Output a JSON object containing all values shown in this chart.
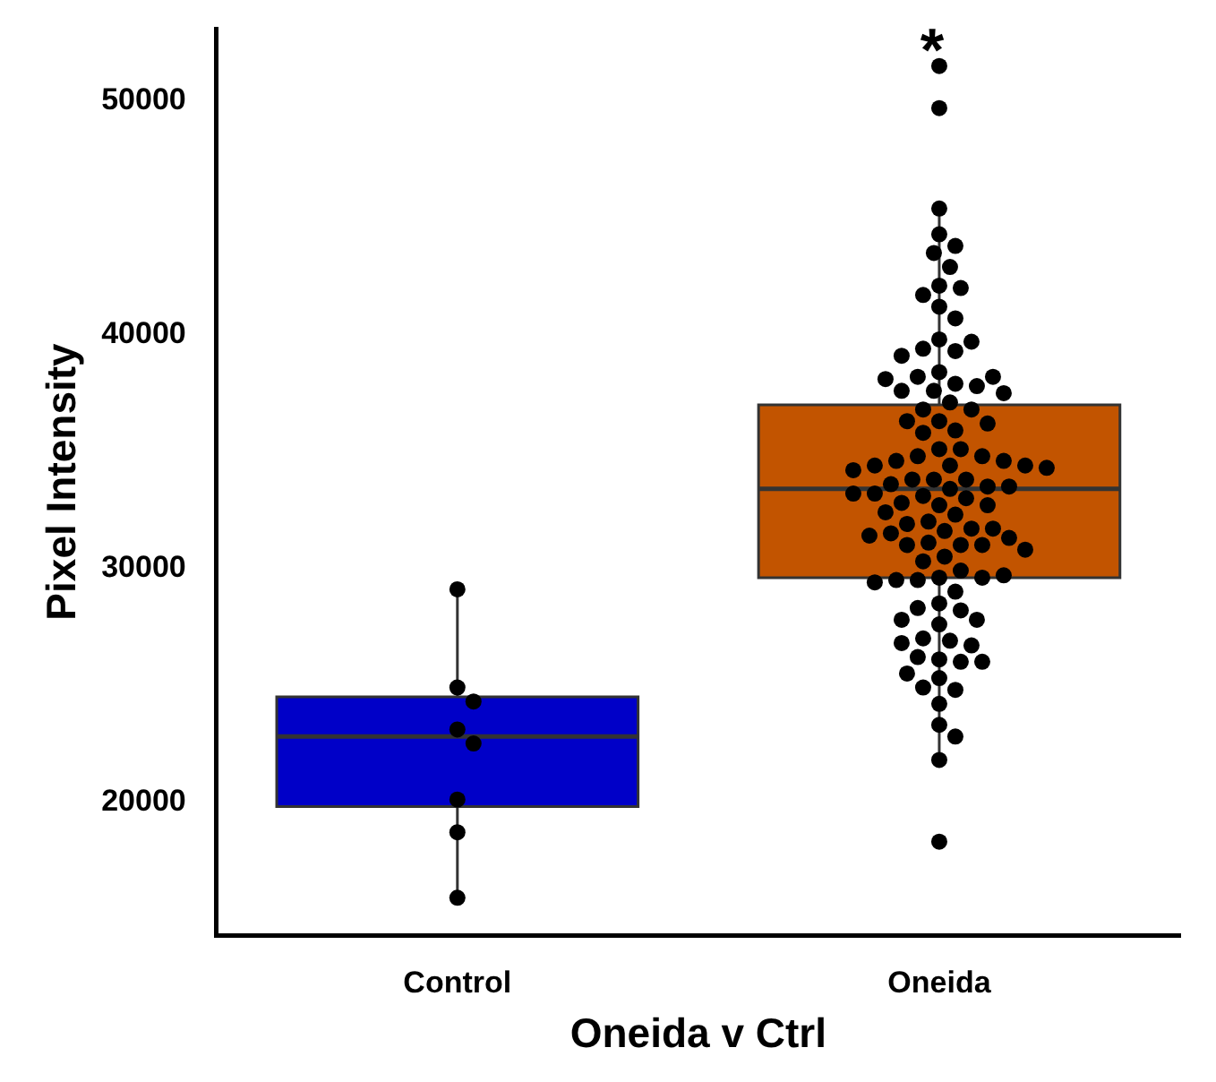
{
  "chart_data": {
    "type": "box",
    "xlabel": "Oneida v Ctrl",
    "ylabel": "Pixel Intensity",
    "categories": [
      "Control",
      "Oneida"
    ],
    "ylim": [
      14300,
      53100
    ],
    "yticks": [
      20000,
      30000,
      40000,
      50000
    ],
    "annotations": [
      "*"
    ],
    "series": [
      {
        "type": "box",
        "colors": [
          "#0000c8",
          "#c25400"
        ],
        "boxes": [
          {
            "low": 15900,
            "q1": 19800,
            "median": 22800,
            "q3": 24500,
            "high": 29100
          },
          {
            "low": 21800,
            "q1": 29600,
            "median": 33400,
            "q3": 37000,
            "high": 45400,
            "outliers": [
              51500,
              49700,
              18300
            ]
          }
        ]
      },
      {
        "type": "scatter",
        "color": "#000000",
        "marker": "circle",
        "x": [
          "Control",
          "Control",
          "Control",
          "Control",
          "Control",
          "Control",
          "Control",
          "Control",
          "Oneida",
          "Oneida",
          "Oneida",
          "Oneida",
          "Oneida",
          "Oneida",
          "Oneida",
          "Oneida",
          "Oneida",
          "Oneida",
          "Oneida",
          "Oneida",
          "Oneida",
          "Oneida",
          "Oneida",
          "Oneida",
          "Oneida",
          "Oneida",
          "Oneida",
          "Oneida",
          "Oneida",
          "Oneida",
          "Oneida",
          "Oneida",
          "Oneida",
          "Oneida",
          "Oneida",
          "Oneida",
          "Oneida",
          "Oneida",
          "Oneida",
          "Oneida",
          "Oneida",
          "Oneida",
          "Oneida",
          "Oneida",
          "Oneida",
          "Oneida",
          "Oneida",
          "Oneida",
          "Oneida",
          "Oneida",
          "Oneida",
          "Oneida",
          "Oneida",
          "Oneida",
          "Oneida",
          "Oneida",
          "Oneida",
          "Oneida",
          "Oneida",
          "Oneida",
          "Oneida",
          "Oneida",
          "Oneida",
          "Oneida",
          "Oneida",
          "Oneida",
          "Oneida",
          "Oneida",
          "Oneida",
          "Oneida",
          "Oneida",
          "Oneida",
          "Oneida",
          "Oneida",
          "Oneida",
          "Oneida",
          "Oneida",
          "Oneida",
          "Oneida",
          "Oneida",
          "Oneida",
          "Oneida",
          "Oneida",
          "Oneida",
          "Oneida",
          "Oneida",
          "Oneida",
          "Oneida",
          "Oneida",
          "Oneida",
          "Oneida",
          "Oneida",
          "Oneida",
          "Oneida",
          "Oneida",
          "Oneida",
          "Oneida",
          "Oneida",
          "Oneida",
          "Oneida",
          "Oneida",
          "Oneida",
          "Oneida",
          "Oneida",
          "Oneida",
          "Oneida",
          "Oneida",
          "Oneida",
          "Oneida",
          "Oneida",
          "Oneida",
          "Oneida"
        ],
        "values": [
          29100,
          24900,
          24300,
          23100,
          22500,
          20100,
          18700,
          15900,
          45400,
          44300,
          43800,
          43500,
          42900,
          42100,
          42000,
          41700,
          41200,
          40700,
          39800,
          39300,
          39400,
          39700,
          39100,
          38400,
          37900,
          38200,
          37600,
          37800,
          37600,
          38100,
          38200,
          37500,
          37100,
          36300,
          36800,
          36800,
          36300,
          35900,
          36200,
          35800,
          35100,
          35100,
          34800,
          34800,
          34600,
          34600,
          34400,
          34400,
          34400,
          34200,
          34300,
          33800,
          33800,
          33800,
          33500,
          33400,
          33600,
          33500,
          33200,
          33100,
          33200,
          33000,
          32700,
          32800,
          32700,
          32400,
          32300,
          32000,
          31700,
          31900,
          31700,
          31600,
          31500,
          31400,
          31300,
          31100,
          31000,
          31000,
          31000,
          30800,
          30500,
          30300,
          29900,
          29600,
          29500,
          29600,
          29500,
          29700,
          29400,
          29000,
          28500,
          28200,
          28300,
          27800,
          27600,
          27800,
          26900,
          27000,
          26700,
          26100,
          26200,
          26800,
          26000,
          26000,
          25300,
          25500,
          24800,
          24900,
          24200,
          23300,
          22800,
          21800
        ]
      }
    ]
  }
}
